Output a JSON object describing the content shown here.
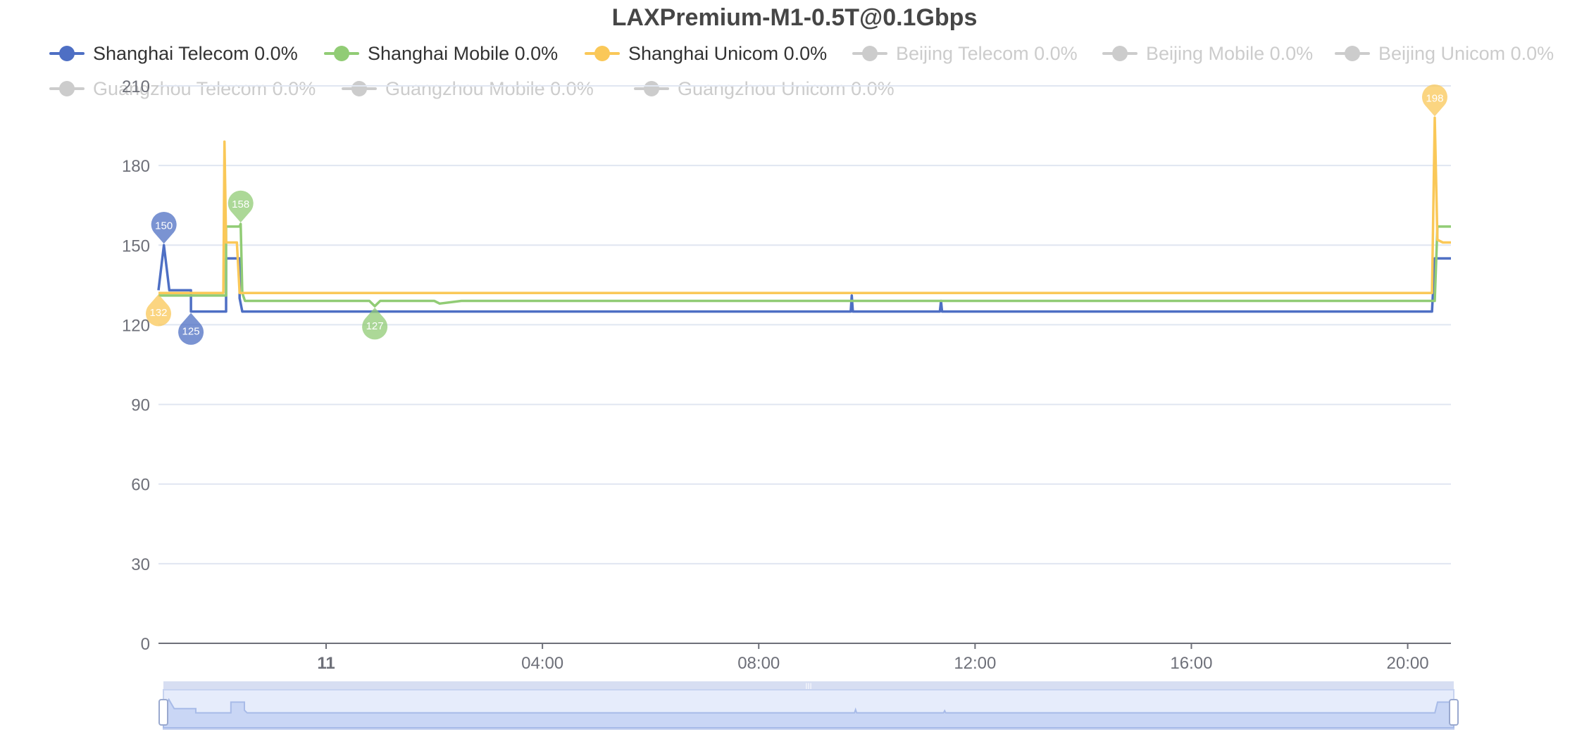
{
  "chart_data": {
    "type": "line",
    "title": "LAXPremium-M1-0.5T@0.1Gbps",
    "ylim": [
      0,
      210
    ],
    "y_ticks": [
      0,
      30,
      60,
      90,
      120,
      150,
      180,
      210
    ],
    "x_ticks": [
      "11",
      "04:00",
      "08:00",
      "12:00",
      "16:00",
      "20:00"
    ],
    "x_range_hours": [
      -3.1,
      20.8
    ],
    "grid": true,
    "legend_position": "top",
    "series": [
      {
        "name": "Shanghai Telecom 0.0%",
        "color": "#4e6fc4",
        "visible": true,
        "x": [
          -3.1,
          -3.0,
          -2.9,
          -2.5,
          -2.5,
          -2.0,
          -1.85,
          -1.85,
          -1.6,
          -1.6,
          -1.55,
          -1.5,
          9.7,
          9.72,
          9.74,
          11.35,
          11.37,
          11.39,
          20.4,
          20.45,
          20.5,
          20.8
        ],
        "y": [
          133,
          150,
          133,
          133,
          125,
          125,
          125,
          145,
          145,
          130,
          125,
          125,
          125,
          131,
          125,
          125,
          129,
          125,
          125,
          125,
          145,
          145
        ],
        "markers": [
          {
            "label": "150",
            "kind": "max",
            "x": -3.0,
            "y": 150
          },
          {
            "label": "125",
            "kind": "min",
            "x": -2.5,
            "y": 125
          }
        ]
      },
      {
        "name": "Shanghai Mobile 0.0%",
        "color": "#91cc75",
        "visible": true,
        "x": [
          -3.1,
          -1.85,
          -1.85,
          -1.6,
          -1.58,
          -1.55,
          -1.5,
          0.8,
          0.9,
          1.0,
          2.0,
          2.1,
          2.5,
          20.5,
          20.55,
          20.8
        ],
        "y": [
          131,
          131,
          157,
          157,
          158,
          132,
          129,
          129,
          127,
          129,
          129,
          128,
          129,
          129,
          157,
          157
        ],
        "markers": [
          {
            "label": "158",
            "kind": "max",
            "x": -1.58,
            "y": 158
          },
          {
            "label": "127",
            "kind": "min",
            "x": 0.9,
            "y": 127
          }
        ]
      },
      {
        "name": "Shanghai Unicom 0.0%",
        "color": "#fac858",
        "visible": true,
        "x": [
          -3.1,
          -1.9,
          -1.88,
          -1.85,
          -1.8,
          -1.65,
          -1.6,
          -1.55,
          20.45,
          20.5,
          20.55,
          20.65,
          20.8
        ],
        "y": [
          132,
          132,
          189,
          151,
          151,
          151,
          132,
          132,
          132,
          198,
          152,
          151,
          151
        ],
        "markers": [
          {
            "label": "132",
            "kind": "min",
            "x": -3.1,
            "y": 132
          },
          {
            "label": "198",
            "kind": "max",
            "x": 20.5,
            "y": 198
          }
        ]
      },
      {
        "name": "Beijing Telecom 0.0%",
        "color": "#cccccc",
        "visible": false
      },
      {
        "name": "Beijing Mobile 0.0%",
        "color": "#cccccc",
        "visible": false
      },
      {
        "name": "Beijing Unicom 0.0%",
        "color": "#cccccc",
        "visible": false
      },
      {
        "name": "Guangzhou Telecom 0.0%",
        "color": "#cccccc",
        "visible": false
      },
      {
        "name": "Guangzhou Mobile 0.0%",
        "color": "#cccccc",
        "visible": false
      },
      {
        "name": "Guangzhou Unicom 0.0%",
        "color": "#cccccc",
        "visible": false
      }
    ],
    "data_zoom": {
      "start_percent": 0,
      "end_percent": 100
    }
  }
}
